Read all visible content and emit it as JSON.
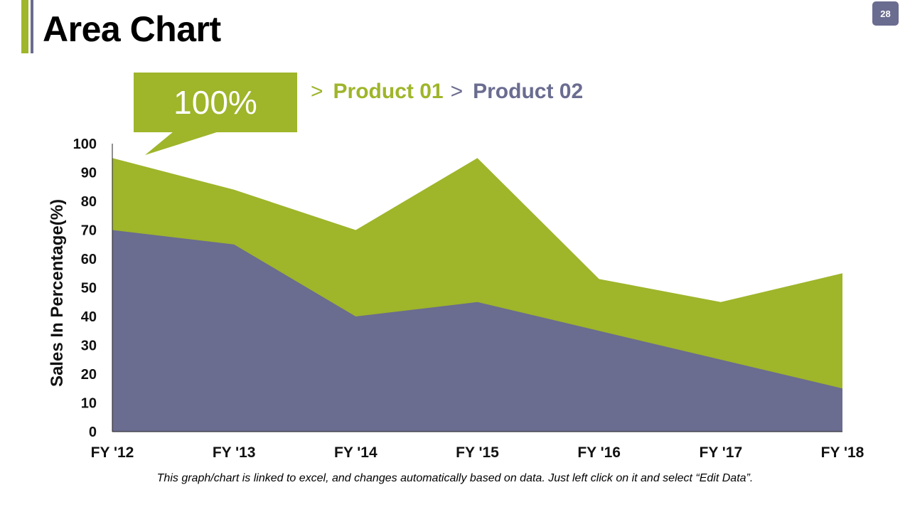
{
  "header": {
    "title": "Area Chart",
    "page_number": "28"
  },
  "callout": {
    "text": "100%"
  },
  "legend": {
    "arrow": ">",
    "items": [
      {
        "label": "Product 01",
        "color": "#9fb52a"
      },
      {
        "label": "Product 02",
        "color": "#6a6c90"
      }
    ]
  },
  "footnote": "This graph/chart is linked to excel, and changes automatically based on data. Just left click on it and select “Edit Data”.",
  "chart_data": {
    "type": "area",
    "title": "",
    "xlabel": "",
    "ylabel": "Sales In Percentage(%)",
    "categories": [
      "FY '12",
      "FY '13",
      "FY '14",
      "FY '15",
      "FY '16",
      "FY '17",
      "FY '18"
    ],
    "series": [
      {
        "name": "Product 01",
        "color": "#9fb52a",
        "values": [
          95,
          84,
          70,
          95,
          53,
          45,
          55
        ]
      },
      {
        "name": "Product 02",
        "color": "#6a6c90",
        "values": [
          70,
          65,
          40,
          45,
          35,
          25,
          15
        ]
      }
    ],
    "ylim": [
      0,
      100
    ],
    "yticks": [
      0,
      10,
      20,
      30,
      40,
      50,
      60,
      70,
      80,
      90,
      100
    ],
    "grid": false
  }
}
